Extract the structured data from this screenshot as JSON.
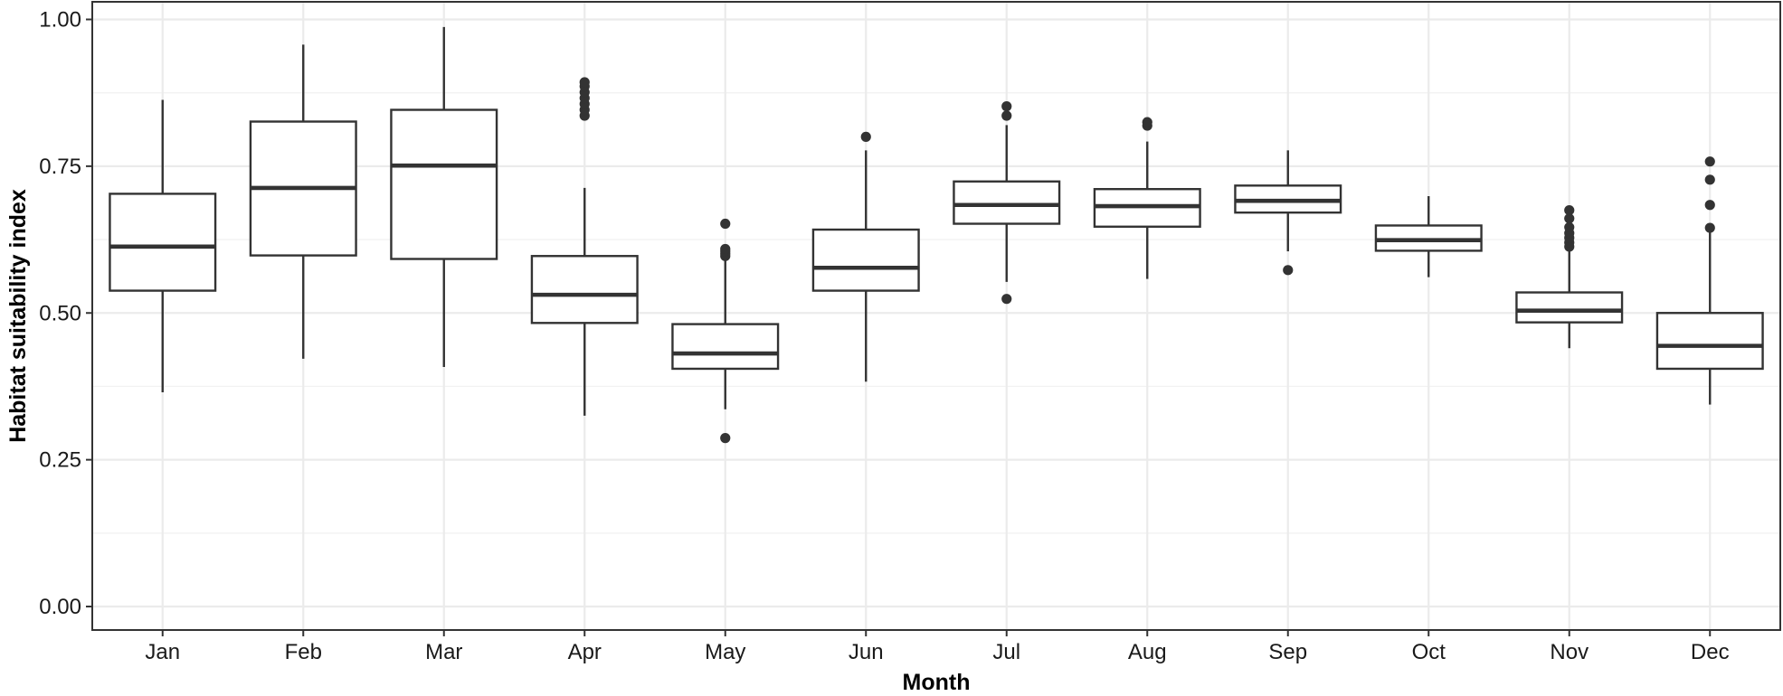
{
  "chart_data": {
    "type": "boxplot",
    "title": "",
    "xlabel": "Month",
    "ylabel": "Habitat suitability index",
    "ylim": [
      -0.04,
      1.03
    ],
    "y_ticks": [
      "0.00",
      "0.25",
      "0.50",
      "0.75",
      "1.00"
    ],
    "y_tick_values": [
      0,
      0.25,
      0.5,
      0.75,
      1.0
    ],
    "grid": true,
    "legend": "none",
    "categories": [
      "Jan",
      "Feb",
      "Mar",
      "Apr",
      "May",
      "Jun",
      "Jul",
      "Aug",
      "Sep",
      "Oct",
      "Nov",
      "Dec"
    ],
    "boxes": [
      {
        "category": "Jan",
        "whisker_low": 0.365,
        "q1": 0.538,
        "median": 0.613,
        "q3": 0.703,
        "whisker_high": 0.863,
        "outliers": []
      },
      {
        "category": "Feb",
        "whisker_low": 0.422,
        "q1": 0.598,
        "median": 0.713,
        "q3": 0.826,
        "whisker_high": 0.957,
        "outliers": []
      },
      {
        "category": "Mar",
        "whisker_low": 0.408,
        "q1": 0.592,
        "median": 0.751,
        "q3": 0.846,
        "whisker_high": 0.987,
        "outliers": []
      },
      {
        "category": "Apr",
        "whisker_low": 0.325,
        "q1": 0.483,
        "median": 0.531,
        "q3": 0.597,
        "whisker_high": 0.713,
        "outliers": [
          0.836,
          0.846,
          0.856,
          0.866,
          0.876,
          0.886,
          0.893
        ]
      },
      {
        "category": "May",
        "whisker_low": 0.336,
        "q1": 0.405,
        "median": 0.431,
        "q3": 0.481,
        "whisker_high": 0.591,
        "outliers": [
          0.287,
          0.597,
          0.601,
          0.605,
          0.609,
          0.652
        ]
      },
      {
        "category": "Jun",
        "whisker_low": 0.383,
        "q1": 0.538,
        "median": 0.577,
        "q3": 0.642,
        "whisker_high": 0.777,
        "outliers": [
          0.8
        ]
      },
      {
        "category": "Jul",
        "whisker_low": 0.553,
        "q1": 0.652,
        "median": 0.684,
        "q3": 0.724,
        "whisker_high": 0.82,
        "outliers": [
          0.524,
          0.836,
          0.852
        ]
      },
      {
        "category": "Aug",
        "whisker_low": 0.558,
        "q1": 0.647,
        "median": 0.682,
        "q3": 0.711,
        "whisker_high": 0.792,
        "outliers": [
          0.819,
          0.825
        ]
      },
      {
        "category": "Sep",
        "whisker_low": 0.605,
        "q1": 0.671,
        "median": 0.691,
        "q3": 0.717,
        "whisker_high": 0.777,
        "outliers": [
          0.573
        ]
      },
      {
        "category": "Oct",
        "whisker_low": 0.561,
        "q1": 0.606,
        "median": 0.624,
        "q3": 0.649,
        "whisker_high": 0.699,
        "outliers": []
      },
      {
        "category": "Nov",
        "whisker_low": 0.44,
        "q1": 0.484,
        "median": 0.504,
        "q3": 0.535,
        "whisker_high": 0.611,
        "outliers": [
          0.613,
          0.62,
          0.628,
          0.636,
          0.646,
          0.661,
          0.675
        ]
      },
      {
        "category": "Dec",
        "whisker_low": 0.344,
        "q1": 0.405,
        "median": 0.444,
        "q3": 0.5,
        "whisker_high": 0.64,
        "outliers": [
          0.645,
          0.684,
          0.727,
          0.758
        ]
      }
    ],
    "colors": {
      "box_stroke": "#333333",
      "box_fill": "#ffffff",
      "outlier": "#333333",
      "grid_major": "#ebebeb",
      "grid_minor": "#f2f2f2",
      "panel_border": "#333333",
      "background": "#ffffff"
    }
  }
}
